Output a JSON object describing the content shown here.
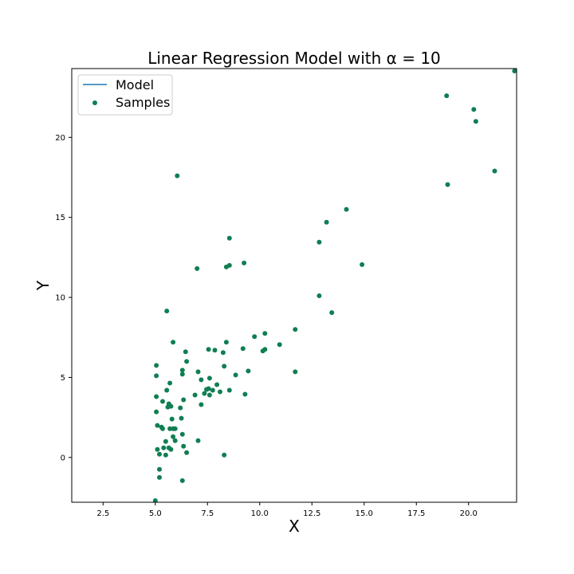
{
  "chart_data": {
    "type": "scatter",
    "title": "Linear Regression Model with α = 10",
    "xlabel": "X",
    "ylabel": "Y",
    "xlim": [
      1.0,
      22.3
    ],
    "ylim": [
      -2.8,
      24.3
    ],
    "xticks": [
      2.5,
      5.0,
      7.5,
      10.0,
      12.5,
      15.0,
      17.5,
      20.0
    ],
    "xtick_labels": [
      "2.5",
      "5.0",
      "7.5",
      "10.0",
      "12.5",
      "15.0",
      "17.5",
      "20.0"
    ],
    "yticks": [
      0,
      5,
      10,
      15,
      20
    ],
    "ytick_labels": [
      "0",
      "5",
      "10",
      "15",
      "20"
    ],
    "grid": false,
    "legend": {
      "position": "top-left",
      "entries": [
        {
          "label": "Model",
          "kind": "line",
          "color": "#1f77b4"
        },
        {
          "label": "Samples",
          "kind": "marker",
          "color": "#0f7f52"
        }
      ]
    },
    "series": [
      {
        "name": "Samples",
        "color": "#0f7f52",
        "points": [
          [
            22.2,
            24.15
          ],
          [
            18.95,
            22.6
          ],
          [
            20.25,
            21.75
          ],
          [
            20.35,
            21.0
          ],
          [
            21.25,
            17.9
          ],
          [
            19.0,
            17.05
          ],
          [
            6.05,
            17.6
          ],
          [
            14.15,
            15.5
          ],
          [
            13.2,
            14.7
          ],
          [
            8.55,
            13.7
          ],
          [
            12.85,
            13.45
          ],
          [
            9.25,
            12.15
          ],
          [
            8.55,
            12.0
          ],
          [
            8.4,
            11.9
          ],
          [
            14.9,
            12.05
          ],
          [
            7.0,
            11.8
          ],
          [
            12.85,
            10.1
          ],
          [
            13.45,
            9.05
          ],
          [
            5.55,
            9.15
          ],
          [
            11.7,
            8.0
          ],
          [
            10.25,
            7.75
          ],
          [
            9.75,
            7.55
          ],
          [
            10.95,
            7.05
          ],
          [
            5.85,
            7.2
          ],
          [
            8.4,
            7.2
          ],
          [
            7.55,
            6.75
          ],
          [
            7.85,
            6.7
          ],
          [
            9.2,
            6.8
          ],
          [
            10.25,
            6.75
          ],
          [
            10.15,
            6.65
          ],
          [
            6.45,
            6.6
          ],
          [
            8.25,
            6.55
          ],
          [
            6.5,
            6.0
          ],
          [
            5.05,
            5.75
          ],
          [
            8.3,
            5.7
          ],
          [
            6.3,
            5.45
          ],
          [
            7.05,
            5.35
          ],
          [
            9.45,
            5.4
          ],
          [
            11.7,
            5.35
          ],
          [
            6.3,
            5.2
          ],
          [
            5.05,
            5.1
          ],
          [
            8.85,
            5.15
          ],
          [
            7.6,
            4.95
          ],
          [
            7.2,
            4.85
          ],
          [
            5.7,
            4.65
          ],
          [
            7.95,
            4.55
          ],
          [
            7.55,
            4.3
          ],
          [
            7.45,
            4.25
          ],
          [
            8.55,
            4.2
          ],
          [
            7.75,
            4.2
          ],
          [
            5.55,
            4.2
          ],
          [
            8.1,
            4.1
          ],
          [
            7.35,
            4.0
          ],
          [
            9.3,
            3.95
          ],
          [
            6.9,
            3.9
          ],
          [
            5.05,
            3.8
          ],
          [
            7.6,
            3.9
          ],
          [
            6.35,
            3.6
          ],
          [
            5.35,
            3.5
          ],
          [
            5.65,
            3.35
          ],
          [
            7.2,
            3.3
          ],
          [
            5.75,
            3.2
          ],
          [
            5.6,
            3.15
          ],
          [
            6.2,
            3.1
          ],
          [
            5.05,
            2.85
          ],
          [
            5.8,
            2.4
          ],
          [
            6.25,
            2.45
          ],
          [
            5.1,
            2.0
          ],
          [
            5.3,
            1.9
          ],
          [
            5.35,
            1.8
          ],
          [
            5.7,
            1.8
          ],
          [
            5.85,
            1.8
          ],
          [
            5.95,
            1.8
          ],
          [
            6.3,
            1.45
          ],
          [
            5.85,
            1.3
          ],
          [
            5.95,
            1.05
          ],
          [
            7.05,
            1.05
          ],
          [
            5.5,
            1.0
          ],
          [
            6.35,
            0.7
          ],
          [
            5.4,
            0.6
          ],
          [
            5.65,
            0.6
          ],
          [
            5.75,
            0.5
          ],
          [
            5.1,
            0.5
          ],
          [
            6.5,
            0.3
          ],
          [
            5.2,
            0.2
          ],
          [
            5.5,
            0.15
          ],
          [
            8.3,
            0.15
          ],
          [
            5.2,
            -0.75
          ],
          [
            5.2,
            -1.25
          ],
          [
            6.3,
            -1.45
          ],
          [
            5.0,
            -2.7
          ]
        ]
      }
    ]
  }
}
